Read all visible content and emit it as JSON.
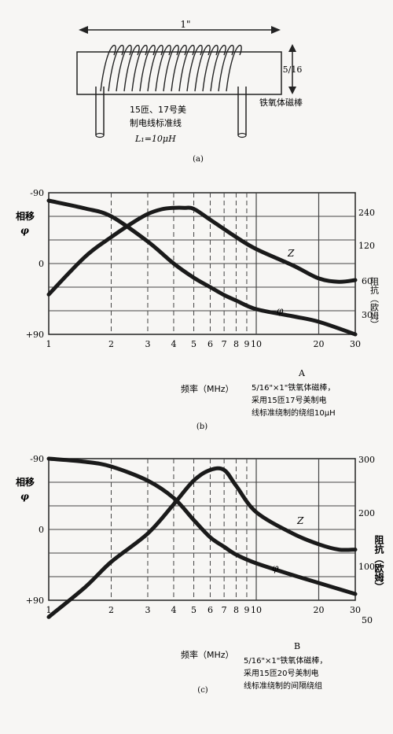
{
  "coil": {
    "width_label": "1\"",
    "height_label": "5/16",
    "winding_label_1": "15匝、17号美",
    "winding_label_2": "制电线标准线",
    "inductance_label": "L₁=10μH",
    "core_label": "铁氧体磁棒",
    "caption": "(a)"
  },
  "chart_data": [
    {
      "type": "line",
      "caption": "(b)",
      "panel_letter": "A",
      "xlabel": "频率（MHz）",
      "x_scale": "log",
      "xlim": [
        1,
        30
      ],
      "x_ticks": [
        "1",
        "2",
        "3",
        "4",
        "5",
        "6",
        "7",
        "8",
        "9",
        "10",
        "20",
        "30"
      ],
      "ylabel_left_1": "相移",
      "ylabel_left_2": "φ",
      "yticks_left": [
        "-90",
        "0",
        "+90"
      ],
      "ylabel_right": "阻抗（欧姆）",
      "yticks_right": [
        "240",
        "120",
        "60",
        "30"
      ],
      "series": [
        {
          "name": "Z",
          "x": [
            1,
            1.5,
            2,
            2.5,
            3,
            3.5,
            4,
            4.5,
            5,
            6,
            8,
            10,
            15,
            20,
            25,
            30
          ],
          "y": [
            45,
            95,
            140,
            185,
            225,
            248,
            255,
            255,
            250,
            200,
            140,
            110,
            80,
            62,
            58,
            60
          ]
        },
        {
          "name": "φ",
          "x": [
            1,
            1.5,
            2,
            3,
            4,
            5,
            6,
            7,
            8,
            10,
            15,
            20,
            30
          ],
          "y": [
            -80,
            -70,
            -60,
            -28,
            0,
            18,
            30,
            40,
            47,
            58,
            67,
            74,
            90
          ]
        }
      ],
      "note_1": "5/16\"×1\"铁氧体磁棒，",
      "note_2": "采用15匝17号美制电",
      "note_3": "线标准绕制的绕组10μH"
    },
    {
      "type": "line",
      "caption": "(c)",
      "panel_letter": "B",
      "xlabel": "频率（MHz）",
      "x_scale": "log",
      "xlim": [
        1,
        30
      ],
      "x_ticks": [
        "1",
        "2",
        "3",
        "4",
        "5",
        "6",
        "7",
        "8",
        "9",
        "10",
        "20",
        "30"
      ],
      "ylabel_left_1": "相移",
      "ylabel_left_2": "φ",
      "yticks_left": [
        "-90",
        "0",
        "+90"
      ],
      "ylabel_right": "阻抗（欧姆）",
      "yticks_right": [
        "300",
        "200",
        "100",
        "50"
      ],
      "series": [
        {
          "name": "Z",
          "x": [
            1,
            1.5,
            2,
            3,
            4,
            5,
            6,
            7,
            8,
            10,
            15,
            20,
            25,
            30
          ],
          "y": [
            52,
            80,
            107,
            160,
            215,
            260,
            280,
            280,
            250,
            200,
            160,
            140,
            130,
            130
          ]
        },
        {
          "name": "φ",
          "x": [
            1,
            1.5,
            2,
            3,
            4,
            5,
            6,
            7,
            8,
            10,
            15,
            20,
            30
          ],
          "y": [
            -90,
            -86,
            -80,
            -62,
            -40,
            -12,
            10,
            22,
            32,
            43,
            58,
            68,
            82
          ]
        }
      ],
      "note_1": "5/16\"×1\"铁氧体磁棒，",
      "note_2": "采用15匝20号美制电",
      "note_3": "线标准绕制的间隔绕组"
    }
  ]
}
